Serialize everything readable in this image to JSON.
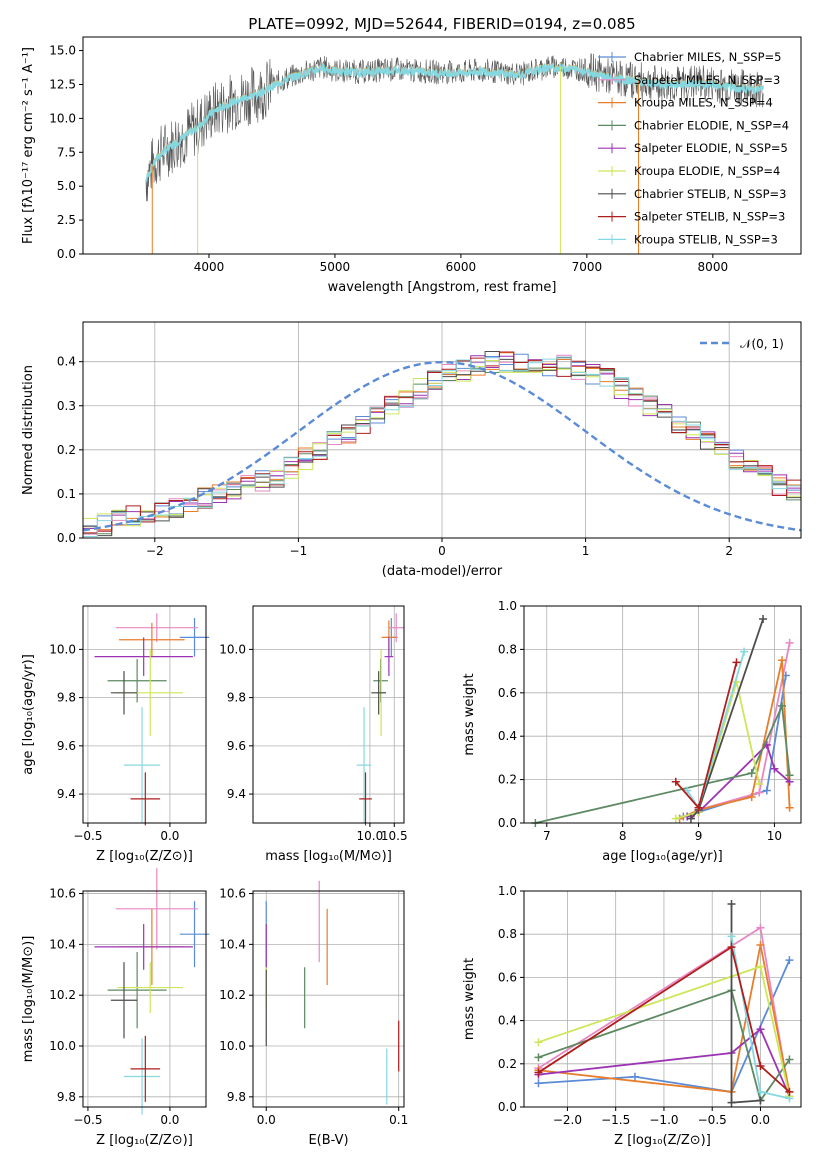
{
  "chart_data": [
    {
      "type": "line",
      "title": "PLATE=0992, MJD=52644, FIBERID=0194, z=0.085",
      "xlabel": "wavelength [Angstrom, rest frame]",
      "ylabel": "Flux [fλ10⁻¹⁷ erg cm⁻² s⁻¹ A⁻¹]",
      "xlim": [
        3000,
        8700
      ],
      "ylim": [
        0,
        16
      ],
      "xticks": [
        "4000",
        "5000",
        "6000",
        "7000",
        "8000"
      ],
      "yticks": [
        "0.0",
        "2.5",
        "5.0",
        "7.5",
        "10.0",
        "12.5",
        "15.0"
      ],
      "legend": [
        "Chabrier MILES, N_SSP=5",
        "Salpeter MILES, N_SSP=3",
        "Kroupa MILES, N_SSP=4",
        "Chabrier ELODIE, N_SSP=4",
        "Salpeter ELODIE, N_SSP=5",
        "Kroupa ELODIE, N_SSP=4",
        "Chabrier STELIB, N_SSP=3",
        "Salpeter STELIB, N_SSP=3",
        "Kroupa STELIB, N_SSP=3"
      ],
      "legend_position": "right",
      "spectrum_x": [
        3500,
        3550,
        3600,
        3700,
        3800,
        3900,
        4000,
        4100,
        4200,
        4300,
        4400,
        4500,
        4600,
        4700,
        4800,
        4900,
        5000,
        5100,
        5200,
        5300,
        5400,
        5500,
        5600,
        5700,
        5800,
        5900,
        6000,
        6100,
        6200,
        6300,
        6400,
        6500,
        6600,
        6700,
        6800,
        6900,
        7000,
        7100,
        7200,
        7300,
        7400,
        7500,
        7600,
        7700,
        7800,
        7900,
        8000,
        8100,
        8200,
        8300,
        8400
      ],
      "spectrum_y": [
        5.5,
        6.5,
        7.3,
        8.0,
        8.7,
        9.3,
        10.3,
        10.9,
        11.3,
        11.6,
        11.9,
        12.4,
        12.9,
        13.2,
        13.5,
        13.8,
        13.5,
        13.5,
        13.4,
        13.5,
        13.6,
        13.6,
        13.5,
        13.5,
        13.4,
        13.4,
        13.4,
        13.5,
        13.5,
        13.4,
        13.3,
        13.3,
        13.6,
        13.8,
        13.8,
        13.7,
        13.5,
        13.3,
        13.0,
        12.9,
        12.8,
        12.6,
        12.5,
        12.5,
        12.6,
        12.6,
        12.5,
        12.4,
        12.3,
        12.2,
        12.2
      ]
    },
    {
      "type": "bar",
      "xlabel": "(data-model)/error",
      "ylabel": "Normed distribution",
      "xlim": [
        -2.5,
        2.5
      ],
      "ylim": [
        0,
        0.49
      ],
      "xticks": [
        "−2",
        "−1",
        "0",
        "1",
        "2"
      ],
      "yticks": [
        "0.0",
        "0.1",
        "0.2",
        "0.3",
        "0.4"
      ],
      "legend": [
        "𝒩(0, 1)"
      ],
      "legend_position": "upper right",
      "bin_width": 0.1,
      "bin_start": -2.5,
      "hist_mean": [
        0.02,
        0.03,
        0.04,
        0.05,
        0.05,
        0.06,
        0.07,
        0.08,
        0.09,
        0.1,
        0.11,
        0.12,
        0.13,
        0.14,
        0.16,
        0.18,
        0.2,
        0.22,
        0.24,
        0.26,
        0.28,
        0.3,
        0.32,
        0.34,
        0.36,
        0.37,
        0.38,
        0.39,
        0.4,
        0.4,
        0.4,
        0.4,
        0.39,
        0.39,
        0.38,
        0.37,
        0.36,
        0.34,
        0.32,
        0.3,
        0.28,
        0.26,
        0.24,
        0.22,
        0.2,
        0.18,
        0.16,
        0.14,
        0.12,
        0.11,
        0.1
      ]
    },
    {
      "type": "scatter",
      "xlabel": "Z [log₁₀(Z/Z⊙)]",
      "ylabel": "age  [log₁₀(age/yr)]",
      "xlim": [
        -0.53,
        0.22
      ],
      "ylim": [
        9.28,
        10.18
      ],
      "xticks": [
        "−0.5",
        "0.0"
      ],
      "yticks": [
        "9.4",
        "9.6",
        "9.8",
        "10.0"
      ],
      "points": [
        {
          "x": 0.15,
          "y": 10.05,
          "xerr": 0.09,
          "yerr": 0.08,
          "color": "#5b8bd6"
        },
        {
          "x": -0.08,
          "y": 10.09,
          "xerr": 0.25,
          "yerr": 0.06,
          "color": "#e887c3"
        },
        {
          "x": -0.11,
          "y": 10.04,
          "xerr": 0.2,
          "yerr": 0.07,
          "color": "#e87d2a"
        },
        {
          "x": -0.16,
          "y": 9.97,
          "xerr": 0.3,
          "yerr": 0.08,
          "color": "#9b34b4"
        },
        {
          "x": -0.2,
          "y": 9.87,
          "xerr": 0.18,
          "yerr": 0.09,
          "color": "#5d8a62"
        },
        {
          "x": -0.12,
          "y": 9.82,
          "xerr": 0.2,
          "yerr": 0.18,
          "color": "#cde65a"
        },
        {
          "x": -0.28,
          "y": 9.82,
          "xerr": 0.08,
          "yerr": 0.09,
          "color": "#4d4d4d"
        },
        {
          "x": -0.17,
          "y": 9.52,
          "xerr": 0.11,
          "yerr": 0.24,
          "color": "#86d8e0"
        },
        {
          "x": -0.15,
          "y": 9.38,
          "xerr": 0.09,
          "yerr": 0.11,
          "color": "#b01d1d"
        }
      ]
    },
    {
      "type": "scatter",
      "xlabel": "mass [log₁₀(M/M⊙)]",
      "ylabel": "",
      "xlim": [
        7.6,
        10.7
      ],
      "ylim": [
        9.28,
        10.18
      ],
      "xticks": [
        "10.0",
        "10.5"
      ],
      "yticks": [
        "9.4",
        "9.6",
        "9.8",
        "10.0"
      ],
      "points": [
        {
          "x": 10.44,
          "y": 10.05,
          "xerr": 0.13,
          "yerr": 0.08,
          "color": "#5b8bd6"
        },
        {
          "x": 10.54,
          "y": 10.09,
          "xerr": 0.16,
          "yerr": 0.06,
          "color": "#e887c3"
        },
        {
          "x": 10.39,
          "y": 10.05,
          "xerr": 0.15,
          "yerr": 0.07,
          "color": "#e87d2a"
        },
        {
          "x": 10.39,
          "y": 9.97,
          "xerr": 0.09,
          "yerr": 0.08,
          "color": "#9b34b4"
        },
        {
          "x": 10.22,
          "y": 9.87,
          "xerr": 0.15,
          "yerr": 0.09,
          "color": "#5d8a62"
        },
        {
          "x": 10.23,
          "y": 9.82,
          "xerr": 0.1,
          "yerr": 0.18,
          "color": "#cde65a"
        },
        {
          "x": 10.18,
          "y": 9.82,
          "xerr": 0.15,
          "yerr": 0.09,
          "color": "#4d4d4d"
        },
        {
          "x": 9.88,
          "y": 9.52,
          "xerr": 0.15,
          "yerr": 0.24,
          "color": "#86d8e0"
        },
        {
          "x": 9.91,
          "y": 9.38,
          "xerr": 0.13,
          "yerr": 0.11,
          "color": "#b01d1d"
        }
      ]
    },
    {
      "type": "line",
      "xlabel": "age  [log₁₀(age/yr)]",
      "ylabel": "mass weight",
      "xlim": [
        6.7,
        10.35
      ],
      "ylim": [
        0,
        1
      ],
      "xticks": [
        "7",
        "8",
        "9",
        "10"
      ],
      "yticks": [
        "0.0",
        "0.2",
        "0.4",
        "0.6",
        "0.8",
        "1.0"
      ],
      "series": [
        {
          "color": "#5b8bd6",
          "x": [
            8.8,
            9.0,
            9.9,
            10.15
          ],
          "y": [
            0.03,
            0.05,
            0.15,
            0.68
          ]
        },
        {
          "color": "#e887c3",
          "x": [
            8.9,
            9.0,
            9.8,
            10.2
          ],
          "y": [
            0.03,
            0.06,
            0.14,
            0.83
          ]
        },
        {
          "color": "#e87d2a",
          "x": [
            8.75,
            9.0,
            9.7,
            10.1,
            10.2
          ],
          "y": [
            0.02,
            0.06,
            0.12,
            0.75,
            0.07
          ]
        },
        {
          "color": "#9b34b4",
          "x": [
            8.85,
            9.0,
            9.9,
            10.0,
            10.2
          ],
          "y": [
            0.03,
            0.05,
            0.36,
            0.25,
            0.19
          ]
        },
        {
          "color": "#5d8a62",
          "x": [
            6.85,
            9.7,
            10.1,
            10.2
          ],
          "y": [
            0.0,
            0.23,
            0.54,
            0.22
          ]
        },
        {
          "color": "#cde65a",
          "x": [
            8.7,
            9.0,
            9.5,
            9.8
          ],
          "y": [
            0.02,
            0.05,
            0.65,
            0.18
          ]
        },
        {
          "color": "#4d4d4d",
          "x": [
            8.9,
            9.0,
            9.85
          ],
          "y": [
            0.02,
            0.06,
            0.94
          ]
        },
        {
          "color": "#86d8e0",
          "x": [
            8.85,
            9.0,
            9.6
          ],
          "y": [
            0.15,
            0.07,
            0.79
          ]
        },
        {
          "color": "#b01d1d",
          "x": [
            8.7,
            9.0,
            9.5
          ],
          "y": [
            0.19,
            0.07,
            0.74
          ]
        }
      ]
    },
    {
      "type": "scatter",
      "xlabel": "Z [log₁₀(Z/Z⊙)]",
      "ylabel": "mass [log₁₀(M/M⊙)]",
      "xlim": [
        -0.53,
        0.22
      ],
      "ylim": [
        9.76,
        10.61
      ],
      "xticks": [
        "−0.5",
        "0.0"
      ],
      "yticks": [
        "9.8",
        "10.0",
        "10.2",
        "10.4",
        "10.6"
      ],
      "points": [
        {
          "x": 0.15,
          "y": 10.44,
          "xerr": 0.09,
          "yerr": 0.13,
          "color": "#5b8bd6"
        },
        {
          "x": -0.08,
          "y": 10.54,
          "xerr": 0.25,
          "yerr": 0.16,
          "color": "#e887c3"
        },
        {
          "x": -0.11,
          "y": 10.39,
          "xerr": 0.2,
          "yerr": 0.15,
          "color": "#e87d2a"
        },
        {
          "x": -0.16,
          "y": 10.39,
          "xerr": 0.3,
          "yerr": 0.09,
          "color": "#9b34b4"
        },
        {
          "x": -0.2,
          "y": 10.22,
          "xerr": 0.18,
          "yerr": 0.15,
          "color": "#5d8a62"
        },
        {
          "x": -0.12,
          "y": 10.23,
          "xerr": 0.2,
          "yerr": 0.1,
          "color": "#cde65a"
        },
        {
          "x": -0.28,
          "y": 10.18,
          "xerr": 0.08,
          "yerr": 0.15,
          "color": "#4d4d4d"
        },
        {
          "x": -0.17,
          "y": 9.88,
          "xerr": 0.11,
          "yerr": 0.15,
          "color": "#86d8e0"
        },
        {
          "x": -0.15,
          "y": 9.91,
          "xerr": 0.09,
          "yerr": 0.13,
          "color": "#b01d1d"
        }
      ]
    },
    {
      "type": "scatter",
      "xlabel": "E(B-V)",
      "ylabel": "",
      "xlim": [
        -0.01,
        0.104
      ],
      "ylim": [
        9.76,
        10.61
      ],
      "xticks": [
        "0.0",
        "0.1"
      ],
      "yticks": [
        "9.8",
        "10.0",
        "10.2",
        "10.4",
        "10.6"
      ],
      "points": [
        {
          "x": 0.0,
          "y": 10.44,
          "yerr": 0.13,
          "color": "#5b8bd6"
        },
        {
          "x": 0.04,
          "y": 10.49,
          "yerr": 0.16,
          "color": "#e887c3"
        },
        {
          "x": 0.046,
          "y": 10.39,
          "yerr": 0.15,
          "color": "#e87d2a"
        },
        {
          "x": 0.0,
          "y": 10.39,
          "yerr": 0.09,
          "color": "#9b34b4"
        },
        {
          "x": 0.029,
          "y": 10.19,
          "yerr": 0.12,
          "color": "#5d8a62"
        },
        {
          "x": 0.0,
          "y": 10.23,
          "yerr": 0.08,
          "color": "#cde65a"
        },
        {
          "x": 0.0,
          "y": 10.15,
          "yerr": 0.15,
          "color": "#4d4d4d"
        },
        {
          "x": 0.091,
          "y": 9.88,
          "yerr": 0.11,
          "color": "#86d8e0"
        },
        {
          "x": 0.1,
          "y": 10.0,
          "yerr": 0.1,
          "color": "#b01d1d"
        }
      ]
    },
    {
      "type": "line",
      "xlabel": "Z [log₁₀(Z/Z⊙)]",
      "ylabel": "mass weight",
      "xlim": [
        -2.45,
        0.42
      ],
      "ylim": [
        0,
        1
      ],
      "xticks": [
        "−2.0",
        "−1.5",
        "−1.0",
        "−0.5",
        "0.0"
      ],
      "yticks": [
        "0.0",
        "0.2",
        "0.4",
        "0.6",
        "0.8",
        "1.0"
      ],
      "series": [
        {
          "color": "#5b8bd6",
          "x": [
            -2.3,
            -1.3,
            -0.3,
            0.3
          ],
          "y": [
            0.11,
            0.14,
            0.07,
            0.68
          ]
        },
        {
          "color": "#e887c3",
          "x": [
            -2.3,
            0.0,
            0.3
          ],
          "y": [
            0.18,
            0.83,
            0.05
          ]
        },
        {
          "color": "#e87d2a",
          "x": [
            -2.3,
            -0.3,
            0.0,
            0.3
          ],
          "y": [
            0.17,
            0.07,
            0.75,
            0.07
          ]
        },
        {
          "color": "#9b34b4",
          "x": [
            -2.3,
            -0.3,
            0.0,
            0.3
          ],
          "y": [
            0.15,
            0.25,
            0.36,
            0.05
          ]
        },
        {
          "color": "#5d8a62",
          "x": [
            -2.3,
            -0.3,
            0.0,
            0.3
          ],
          "y": [
            0.23,
            0.54,
            0.03,
            0.22
          ]
        },
        {
          "color": "#cde65a",
          "x": [
            -2.3,
            0.0,
            0.3
          ],
          "y": [
            0.3,
            0.65,
            0.05
          ]
        },
        {
          "color": "#4d4d4d",
          "x": [
            -0.3,
            -0.3,
            0.0
          ],
          "y": [
            0.94,
            0.02,
            0.03
          ]
        },
        {
          "color": "#86d8e0",
          "x": [
            -0.3,
            0.0,
            0.3
          ],
          "y": [
            0.79,
            0.07,
            0.04
          ]
        },
        {
          "color": "#b01d1d",
          "x": [
            -2.3,
            -0.3,
            0.0,
            0.3
          ],
          "y": [
            0.16,
            0.74,
            0.19,
            0.07
          ]
        }
      ]
    }
  ]
}
